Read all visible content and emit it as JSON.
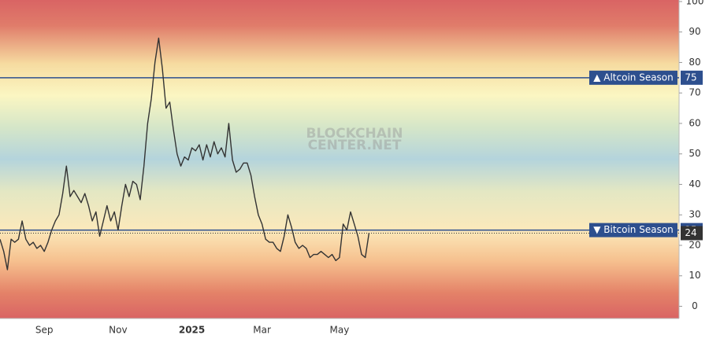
{
  "chart_data": {
    "type": "line",
    "watermark": [
      "BLOCKCHAIN",
      "CENTER.NET"
    ],
    "categories": [
      null,
      null,
      null,
      null,
      null,
      null,
      null,
      null,
      null,
      null,
      null,
      null,
      "Sep",
      null,
      null,
      null,
      null,
      null,
      null,
      null,
      null,
      null,
      null,
      null,
      null,
      null,
      null,
      null,
      null,
      null,
      null,
      null,
      "Nov",
      null,
      null,
      null,
      null,
      null,
      null,
      null,
      null,
      null,
      null,
      null,
      null,
      null,
      null,
      null,
      null,
      null,
      null,
      null,
      "2025",
      null,
      null,
      null,
      null,
      null,
      null,
      null,
      null,
      null,
      null,
      null,
      null,
      null,
      null,
      null,
      null,
      null,
      null,
      "Mar",
      null,
      null,
      null,
      null,
      null,
      null,
      null,
      null,
      null,
      null,
      null,
      null,
      null,
      null,
      null,
      null,
      null,
      null,
      null,
      null,
      "May",
      null,
      null,
      null,
      null,
      null,
      null,
      null,
      null
    ],
    "series": [
      {
        "color": "#333333",
        "values": [
          22,
          18,
          12,
          22,
          21,
          22,
          28,
          22,
          20,
          21,
          19,
          20,
          18,
          21,
          25,
          28,
          30,
          37,
          46,
          36,
          38,
          36,
          34,
          37,
          33,
          28,
          31,
          23,
          28,
          33,
          28,
          31,
          25,
          33,
          40,
          36,
          41,
          40,
          35,
          46,
          60,
          68,
          80,
          88,
          78,
          65,
          67,
          58,
          50,
          46,
          49,
          48,
          52,
          51,
          53,
          48,
          53,
          49,
          54,
          50,
          52,
          49,
          60,
          48,
          44,
          45,
          47,
          47,
          43,
          36,
          30,
          27,
          22,
          21,
          21,
          19,
          18,
          23,
          30,
          26,
          21,
          19,
          20,
          19,
          16,
          17,
          17,
          18,
          17,
          16,
          17,
          15,
          16,
          27,
          25,
          31,
          27,
          23,
          17,
          16,
          24
        ]
      }
    ],
    "ylim": [
      -4,
      100.5
    ],
    "yticks": [
      0,
      10,
      20,
      30,
      40,
      50,
      60,
      70,
      80,
      90,
      100
    ],
    "reference_lines": [
      {
        "value": 75,
        "label": "▲ Altcoin Season",
        "color": "#2d4f8e"
      },
      {
        "value": 25,
        "label": "▼ Bitcoin Season",
        "color": "#2d4f8e"
      }
    ],
    "current": {
      "value": 24,
      "color": "#333333"
    }
  }
}
